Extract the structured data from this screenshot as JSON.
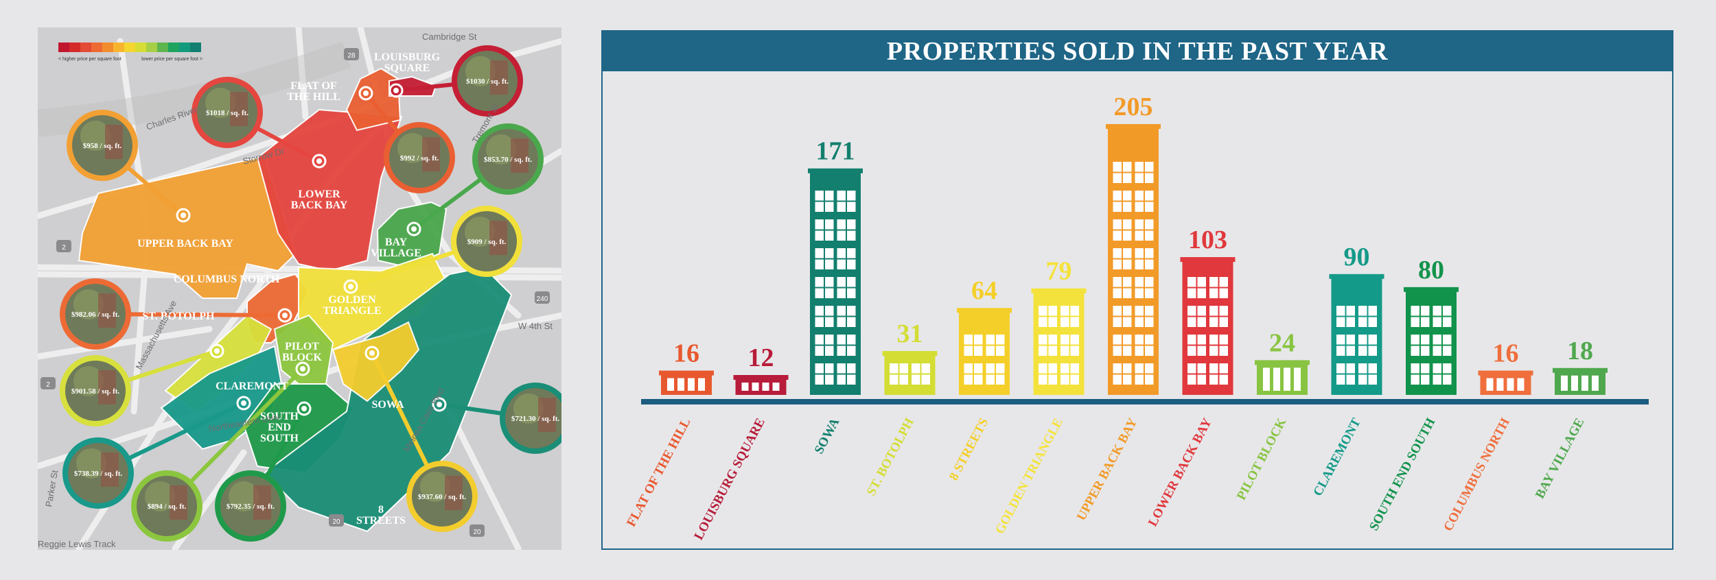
{
  "map": {
    "legend": {
      "left_text": "< higher price per square foot",
      "right_text": "lower price per square foot >",
      "colors": [
        "#c0172d",
        "#d42a2a",
        "#e34b36",
        "#ee6a33",
        "#f28d2e",
        "#f7b52f",
        "#f4d62f",
        "#d6dd34",
        "#a6cf45",
        "#5db54e",
        "#1ea45e",
        "#129a7d",
        "#127f70"
      ]
    },
    "street_labels": [
      "Cambridge St",
      "Charles River",
      "Storrow Dr",
      "Tremont St",
      "Massachusetts Ave",
      "Northeastern Univ",
      "W 4th St",
      "Melnea Cass Blvd",
      "Reggie Lewis Track",
      "Parker St"
    ],
    "road_badges": [
      "28",
      "2",
      "20",
      "2",
      "240",
      "20"
    ],
    "neighborhoods": [
      {
        "name": "upper-back-bay",
        "label": [
          "UPPER BACK BAY"
        ],
        "color": "#f2a033"
      },
      {
        "name": "lower-back-bay",
        "label": [
          "LOWER",
          "BACK BAY"
        ],
        "color": "#e5463f"
      },
      {
        "name": "flat-of-the-hill",
        "label": [
          "FLAT OF",
          "THE HILL"
        ],
        "color": "#ea5f32"
      },
      {
        "name": "louisburg-square",
        "label": [
          "LOUISBURG",
          "SQUARE"
        ],
        "color": "#c41f34"
      },
      {
        "name": "bay-village",
        "label": [
          "BAY",
          "VILLAGE"
        ],
        "color": "#4aa84c"
      },
      {
        "name": "columbus-north",
        "label": [
          "COLUMBUS NORTH"
        ],
        "color": "#ed6a35"
      },
      {
        "name": "golden-triangle",
        "label": [
          "GOLDEN",
          "TRIANGLE"
        ],
        "color": "#f1e03a"
      },
      {
        "name": "st-botolph",
        "label": [
          "ST. BOTOLPH"
        ],
        "color": "#d7e03c"
      },
      {
        "name": "pilot-block",
        "label": [
          "PILOT",
          "BLOCK"
        ],
        "color": "#8cc63f"
      },
      {
        "name": "claremont",
        "label": [
          "CLAREMONT"
        ],
        "color": "#18998a"
      },
      {
        "name": "south-end-south",
        "label": [
          "SOUTH",
          "END",
          "SOUTH"
        ],
        "color": "#1f9a4a"
      },
      {
        "name": "sowa",
        "label": [
          "SOWA"
        ],
        "color": "#1a8e76"
      },
      {
        "name": "8-streets",
        "label": [
          "8",
          "STREETS"
        ],
        "color": "#f3cc2e"
      }
    ],
    "prices": [
      {
        "name": "upper-back-bay",
        "text": "$958 / sq. ft.",
        "color": "#f2a033"
      },
      {
        "name": "lower-back-bay",
        "text": "$1018 / sq. ft.",
        "color": "#e5463f"
      },
      {
        "name": "louisburg-square",
        "text": "$1030 / sq. ft.",
        "color": "#c41f34"
      },
      {
        "name": "flat-of-the-hill",
        "text": "$992 / sq. ft.",
        "color": "#ea5f32"
      },
      {
        "name": "bay-village",
        "text": "$853.70 / sq. ft.",
        "color": "#4aa84c"
      },
      {
        "name": "golden-triangle",
        "text": "$909 / sq. ft.",
        "color": "#f1e03a"
      },
      {
        "name": "columbus-north",
        "text": "$982.06 / sq. ft.",
        "color": "#ed6a35"
      },
      {
        "name": "st-botolph",
        "text": "$901.58 / sq. ft.",
        "color": "#d7e03c"
      },
      {
        "name": "sowa",
        "text": "$721.30 / sq. ft.",
        "color": "#1a8e76"
      },
      {
        "name": "claremont",
        "text": "$738.39 / sq. ft.",
        "color": "#18998a"
      },
      {
        "name": "pilot-block",
        "text": "$894 / sq. ft.",
        "color": "#8cc63f"
      },
      {
        "name": "south-end-south",
        "text": "$792.35 / sq. ft.",
        "color": "#1f9a4a"
      },
      {
        "name": "8-streets",
        "text": "$937.60 / sq. ft.",
        "color": "#f3cc2e"
      }
    ]
  },
  "chart_data": {
    "type": "bar",
    "title": "PROPERTIES SOLD IN THE PAST YEAR",
    "categories": [
      "FLAT OF THE HILL",
      "LOUISBURG SQUARE",
      "SOWA",
      "ST. BOTOLPH",
      "8 STREETS",
      "GOLDEN TRIANGLE",
      "UPPER BACK BAY",
      "LOWER BACK BAY",
      "PILOT BLOCK",
      "CLAREMONT",
      "SOUTH END SOUTH",
      "COLUMBUS NORTH",
      "BAY VILLAGE"
    ],
    "values": [
      16,
      12,
      171,
      31,
      64,
      79,
      205,
      103,
      24,
      90,
      80,
      16,
      18
    ],
    "colors": [
      "#e8582f",
      "#b71c3a",
      "#137f6e",
      "#d4dd34",
      "#f4cf29",
      "#f4e23c",
      "#f29a28",
      "#e0383c",
      "#88c441",
      "#149a88",
      "#12934c",
      "#ef6e3c",
      "#4fa84d"
    ],
    "xlabel": "",
    "ylabel": "",
    "ylim": [
      0,
      205
    ],
    "grid": false,
    "legend": "none"
  }
}
